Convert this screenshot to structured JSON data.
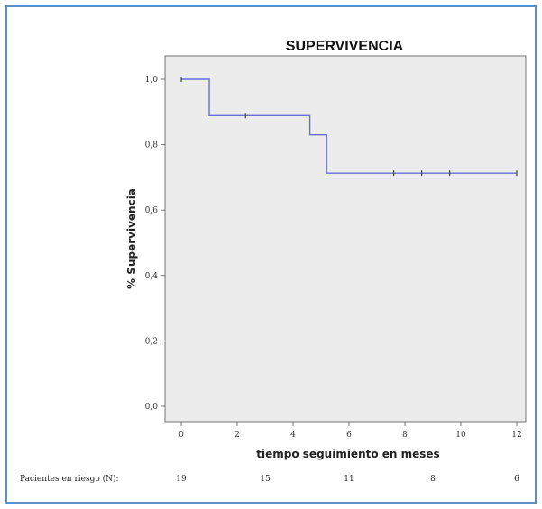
{
  "chart_data": {
    "type": "line",
    "title": "SUPERVIVENCIA",
    "xlabel": "tiempo seguimiento en meses",
    "ylabel": "% Supervivencia",
    "xlim": [
      0,
      12
    ],
    "ylim": [
      0.0,
      1.0
    ],
    "x_ticks": [
      0,
      2,
      4,
      6,
      8,
      10,
      12
    ],
    "x_tick_labels": [
      "0",
      "2",
      "4",
      "6",
      "8",
      "10",
      "12"
    ],
    "y_ticks": [
      0.0,
      0.2,
      0.4,
      0.6,
      0.8,
      1.0
    ],
    "y_tick_labels": [
      "0,0",
      "0,2",
      "0,4",
      "0,6",
      "0,8",
      "1,0"
    ],
    "grid": false,
    "colors": {
      "line": "#6b6bd6",
      "plot_bg": "#ececec",
      "frame": "#5b8fc7"
    },
    "series": [
      {
        "step": true,
        "x": [
          0,
          1,
          4.6,
          5.2,
          12
        ],
        "y": [
          1.0,
          0.889,
          0.83,
          0.713,
          0.713
        ],
        "censored": [
          {
            "x": 0,
            "y": 1.0
          },
          {
            "x": 2.3,
            "y": 0.889
          },
          {
            "x": 7.6,
            "y": 0.713
          },
          {
            "x": 8.6,
            "y": 0.713
          },
          {
            "x": 9.6,
            "y": 0.713
          },
          {
            "x": 12,
            "y": 0.713
          }
        ]
      }
    ],
    "at_risk": {
      "label": "Pacientes en riesgo (N):",
      "x": [
        0,
        3,
        6,
        9,
        12
      ],
      "values": [
        "19",
        "15",
        "11",
        "8",
        "6"
      ]
    }
  }
}
